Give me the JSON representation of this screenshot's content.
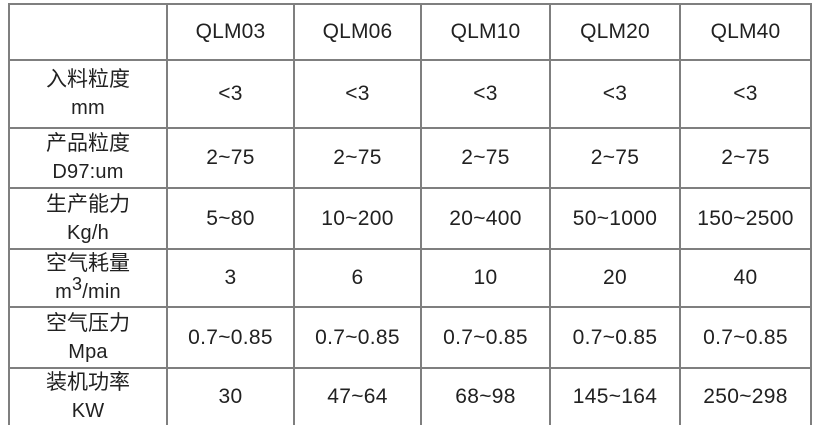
{
  "table": {
    "columns": [
      "QLM03",
      "QLM06",
      "QLM10",
      "QLM20",
      "QLM40"
    ],
    "rows": [
      {
        "label": "入料粒度",
        "unit": "mm",
        "values": [
          "<3",
          "<3",
          "<3",
          "<3",
          "<3"
        ]
      },
      {
        "label": "产品粒度",
        "unit": "D97:um",
        "values": [
          "2~75",
          "2~75",
          "2~75",
          "2~75",
          "2~75"
        ]
      },
      {
        "label": "生产能力",
        "unit": "Kg/h",
        "values": [
          "5~80",
          "10~200",
          "20~400",
          "50~1000",
          "150~2500"
        ]
      },
      {
        "label": "空气耗量",
        "unit_pre": "m",
        "unit_sup": "3",
        "unit_post": "/min",
        "values": [
          "3",
          "6",
          "10",
          "20",
          "40"
        ]
      },
      {
        "label": "空气压力",
        "unit": "Mpa",
        "values": [
          "0.7~0.85",
          "0.7~0.85",
          "0.7~0.85",
          "0.7~0.85",
          "0.7~0.85"
        ]
      },
      {
        "label": "装机功率",
        "unit": "KW",
        "values": [
          "30",
          "47~64",
          "68~98",
          "145~164",
          "250~298"
        ]
      }
    ],
    "colors": {
      "border": "#7f7f7f",
      "text": "#212121",
      "background": "#ffffff"
    }
  }
}
